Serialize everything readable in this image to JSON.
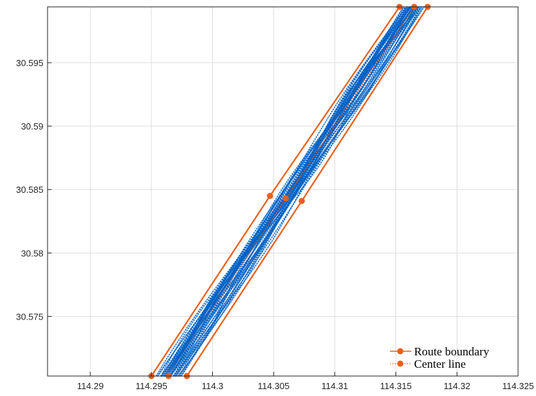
{
  "chart_data": {
    "type": "line",
    "title": "",
    "xlabel": "",
    "ylabel": "",
    "xlim": [
      114.2865,
      114.325
    ],
    "ylim": [
      30.5703,
      30.5994
    ],
    "x_ticks": [
      "114.29",
      "114.295",
      "114.3",
      "114.305",
      "114.31",
      "114.315",
      "114.32",
      "114.325"
    ],
    "x_tick_values": [
      114.29,
      114.295,
      114.3,
      114.305,
      114.31,
      114.315,
      114.32,
      114.325
    ],
    "y_ticks": [
      "30.575",
      "30.58",
      "30.585",
      "30.59",
      "30.595"
    ],
    "y_tick_values": [
      30.575,
      30.58,
      30.585,
      30.59,
      30.595
    ],
    "grid": true,
    "legend_position": "bottom-right",
    "series": [
      {
        "name": "Route boundary",
        "color": "#e8601c",
        "style": "solid-with-markers",
        "lines": [
          [
            [
              114.295,
              30.5703
            ],
            [
              114.3047,
              30.5845
            ],
            [
              114.3153,
              30.5994
            ]
          ],
          [
            [
              114.2979,
              30.5703
            ],
            [
              114.3073,
              30.5841
            ],
            [
              114.3176,
              30.5994
            ]
          ]
        ]
      },
      {
        "name": "Center line",
        "color": "#e8601c",
        "style": "dotted-with-markers",
        "points": [
          [
            114.2964,
            30.5703
          ],
          [
            114.306,
            30.5843
          ],
          [
            114.3165,
            30.5994
          ]
        ]
      }
    ],
    "trajectory_color": "#0062c4",
    "trajectory_band": {
      "lower": [
        [
          114.295,
          30.5703
        ],
        [
          114.3153,
          30.5994
        ]
      ],
      "upper": [
        [
          114.2979,
          30.5703
        ],
        [
          114.3176,
          30.5994
        ]
      ]
    }
  }
}
